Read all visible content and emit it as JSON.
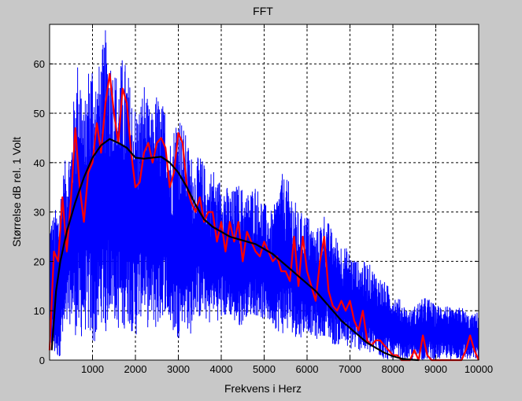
{
  "chart_data": {
    "type": "line",
    "title": "FFT",
    "xlabel": "Frekvens i Herz",
    "ylabel": "Størrelse dB rel. 1 Volt",
    "xlim": [
      0,
      10000
    ],
    "ylim": [
      0,
      68
    ],
    "grid": true,
    "xticks": [
      1000,
      2000,
      3000,
      4000,
      5000,
      6000,
      7000,
      8000,
      9000,
      10000
    ],
    "yticks": [
      0,
      10,
      20,
      30,
      40,
      50,
      60
    ],
    "colors": {
      "background": "#c8c8c8",
      "axes": "#ffffff",
      "series_1": "#0000ff",
      "series_2": "#ff0000",
      "series_3": "#000000"
    },
    "series": [
      {
        "color": "#0000ff",
        "style": "dense-spectrum",
        "x": [
          0,
          100,
          200,
          300,
          400,
          500,
          600,
          700,
          800,
          900,
          1000,
          1100,
          1200,
          1300,
          1400,
          1500,
          1600,
          1700,
          1800,
          1900,
          2000,
          2100,
          2200,
          2300,
          2400,
          2500,
          2600,
          2700,
          2800,
          2900,
          3000,
          3100,
          3200,
          3300,
          3400,
          3500,
          3600,
          3700,
          3800,
          3900,
          4000,
          4200,
          4400,
          4600,
          4800,
          5000,
          5200,
          5400,
          5600,
          5800,
          6000,
          6200,
          6400,
          6600,
          6800,
          7000,
          7200,
          7400,
          7600,
          7800,
          8000,
          8200,
          8400,
          8600,
          8800,
          9000,
          9200,
          9400,
          9600,
          9800,
          10000
        ],
        "upper": [
          30,
          30,
          32,
          38,
          42,
          45,
          58,
          64,
          50,
          60,
          63,
          58,
          62,
          67,
          63,
          60,
          58,
          62,
          60,
          55,
          52,
          52,
          57,
          52,
          50,
          55,
          52,
          52,
          45,
          48,
          53,
          48,
          45,
          42,
          40,
          42,
          40,
          37,
          40,
          36,
          38,
          34,
          36,
          34,
          36,
          32,
          30,
          38,
          36,
          30,
          30,
          26,
          30,
          26,
          24,
          22,
          20,
          20,
          18,
          16,
          14,
          12,
          10,
          12,
          13,
          11,
          12,
          10,
          11,
          9,
          10
        ],
        "lower": [
          0,
          0,
          0,
          2,
          5,
          8,
          5,
          3,
          6,
          5,
          2,
          4,
          8,
          4,
          10,
          8,
          6,
          5,
          8,
          6,
          4,
          8,
          10,
          6,
          8,
          5,
          8,
          10,
          6,
          5,
          4,
          8,
          6,
          5,
          10,
          8,
          10,
          6,
          10,
          8,
          8,
          9,
          6,
          9,
          9,
          8,
          7,
          5,
          6,
          4,
          6,
          4,
          5,
          3,
          3,
          2,
          2,
          1,
          1,
          0,
          0,
          0,
          0,
          0,
          0,
          0,
          0,
          0,
          0,
          0,
          0
        ]
      },
      {
        "color": "#ff0000",
        "style": "line",
        "x": [
          0,
          100,
          200,
          300,
          400,
          500,
          600,
          700,
          800,
          900,
          1000,
          1100,
          1200,
          1300,
          1400,
          1500,
          1600,
          1700,
          1800,
          1900,
          2000,
          2100,
          2200,
          2300,
          2400,
          2500,
          2600,
          2700,
          2800,
          2900,
          3000,
          3100,
          3200,
          3300,
          3400,
          3500,
          3600,
          3700,
          3800,
          3900,
          4000,
          4100,
          4200,
          4300,
          4400,
          4500,
          4600,
          4700,
          4800,
          4900,
          5000,
          5100,
          5200,
          5300,
          5400,
          5500,
          5600,
          5700,
          5800,
          5900,
          6000,
          6100,
          6200,
          6300,
          6400,
          6500,
          6600,
          6700,
          6800,
          6900,
          7000,
          7100,
          7200,
          7300,
          7400,
          7500,
          7600,
          7700,
          7800,
          7900,
          8000,
          8100,
          8200,
          8300,
          8400,
          8500,
          8600,
          8700,
          8800,
          8900,
          9000,
          9100,
          9200,
          9300,
          9400,
          9500,
          9600,
          9700,
          9800,
          9900,
          10000
        ],
        "y": [
          2,
          22,
          20,
          33,
          22,
          33,
          47,
          35,
          28,
          38,
          40,
          48,
          42,
          52,
          58,
          50,
          44,
          55,
          52,
          42,
          35,
          36,
          42,
          44,
          40,
          44,
          45,
          43,
          35,
          38,
          46,
          44,
          35,
          32,
          30,
          33,
          28,
          30,
          30,
          24,
          28,
          22,
          28,
          24,
          28,
          20,
          26,
          24,
          22,
          21,
          24,
          22,
          20,
          21,
          18,
          18,
          16,
          25,
          15,
          25,
          18,
          15,
          12,
          20,
          25,
          14,
          11,
          10,
          12,
          10,
          12,
          8,
          6,
          10,
          4,
          3,
          4,
          4,
          3,
          2,
          1,
          1,
          0,
          0,
          0,
          2,
          0,
          5,
          1,
          0,
          0,
          0,
          0,
          0,
          0,
          0,
          0,
          2,
          5,
          2,
          0
        ]
      },
      {
        "color": "#000000",
        "style": "line",
        "x": [
          50,
          150,
          250,
          400,
          600,
          800,
          1000,
          1200,
          1400,
          1600,
          1800,
          2000,
          2200,
          2400,
          2600,
          2800,
          3000,
          3200,
          3400,
          3600,
          3800,
          4000,
          4200,
          4400,
          4600,
          4800,
          5000,
          5200,
          5400,
          5600,
          5800,
          6000,
          6200,
          6400,
          6600,
          6800,
          7000,
          7200,
          7400,
          7600,
          7800,
          8000,
          8200,
          8400,
          8600
        ],
        "y": [
          2,
          14,
          20,
          26,
          32,
          37,
          41,
          43.5,
          44.8,
          44,
          43,
          41,
          40.8,
          41,
          41.2,
          40,
          38,
          35,
          31.5,
          28.5,
          27,
          26,
          25,
          24.5,
          24,
          23.5,
          22.5,
          21.5,
          20,
          18.5,
          17,
          15.5,
          14,
          12,
          10,
          8,
          6.5,
          5,
          3.5,
          2.5,
          1.5,
          0.8,
          0.3,
          0.1,
          0
        ]
      }
    ]
  }
}
